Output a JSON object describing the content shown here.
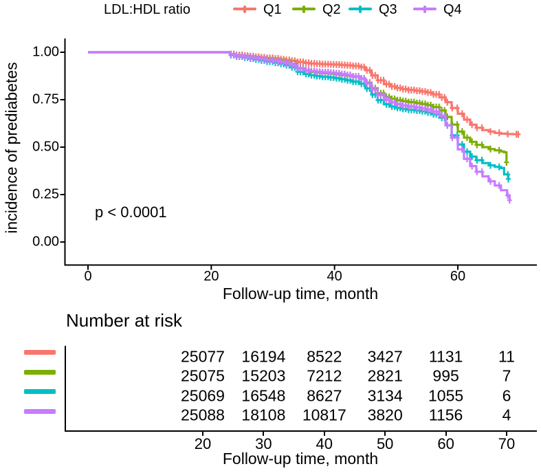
{
  "chart_data": {
    "type": "line",
    "subtype": "kaplan-meier-step-curves-with-censor-marks",
    "title": "",
    "xlabel": "Follow-up time, month",
    "ylabel": "incidence of prediabetes",
    "annotation": "p < 0.0001",
    "xlim": [
      0,
      73
    ],
    "ylim": [
      0,
      1.0
    ],
    "x_ticks": [
      0,
      20,
      40,
      60
    ],
    "y_ticks": [
      {
        "value": 0.0,
        "label": "0.00"
      },
      {
        "value": 0.25,
        "label": "0.25"
      },
      {
        "value": 0.5,
        "label": "0.50"
      },
      {
        "value": 0.75,
        "label": "0.75"
      },
      {
        "value": 1.0,
        "label": "1.00"
      }
    ],
    "grid": false,
    "legend": {
      "title": "LDL:HDL ratio",
      "position": "top"
    },
    "series": [
      {
        "name": "Q1",
        "color": "#F8766D",
        "points": [
          [
            0,
            1
          ],
          [
            22.5,
            1
          ],
          [
            23,
            0.99
          ],
          [
            24,
            0.985
          ],
          [
            25,
            0.982
          ],
          [
            26,
            0.979
          ],
          [
            27,
            0.976
          ],
          [
            28,
            0.973
          ],
          [
            29,
            0.97
          ],
          [
            30,
            0.967
          ],
          [
            31,
            0.963
          ],
          [
            32,
            0.959
          ],
          [
            33,
            0.955
          ],
          [
            34,
            0.949
          ],
          [
            35,
            0.944
          ],
          [
            36,
            0.941
          ],
          [
            37,
            0.939
          ],
          [
            38,
            0.937
          ],
          [
            39,
            0.936
          ],
          [
            40,
            0.935
          ],
          [
            41,
            0.933
          ],
          [
            42,
            0.931
          ],
          [
            43,
            0.928
          ],
          [
            44,
            0.922
          ],
          [
            45,
            0.905
          ],
          [
            46,
            0.878
          ],
          [
            47,
            0.852
          ],
          [
            48,
            0.832
          ],
          [
            49,
            0.82
          ],
          [
            50,
            0.812
          ],
          [
            51,
            0.806
          ],
          [
            52,
            0.801
          ],
          [
            53,
            0.797
          ],
          [
            54,
            0.793
          ],
          [
            55,
            0.788
          ],
          [
            56,
            0.778
          ],
          [
            57,
            0.762
          ],
          [
            58,
            0.737
          ],
          [
            59,
            0.706
          ],
          [
            60,
            0.676
          ],
          [
            61,
            0.645
          ],
          [
            62,
            0.618
          ],
          [
            63,
            0.602
          ],
          [
            64,
            0.59
          ],
          [
            65,
            0.582
          ],
          [
            66,
            0.575
          ],
          [
            67,
            0.571
          ],
          [
            68,
            0.569
          ],
          [
            69,
            0.568
          ],
          [
            69.8,
            0.567
          ]
        ]
      },
      {
        "name": "Q2",
        "color": "#7CAE00",
        "points": [
          [
            0,
            1
          ],
          [
            22.5,
            1
          ],
          [
            23,
            0.988
          ],
          [
            24,
            0.982
          ],
          [
            25,
            0.978
          ],
          [
            26,
            0.974
          ],
          [
            27,
            0.97
          ],
          [
            28,
            0.966
          ],
          [
            29,
            0.962
          ],
          [
            30,
            0.957
          ],
          [
            31,
            0.952
          ],
          [
            32,
            0.947
          ],
          [
            33,
            0.938
          ],
          [
            34,
            0.916
          ],
          [
            35,
            0.904
          ],
          [
            36,
            0.897
          ],
          [
            37,
            0.893
          ],
          [
            38,
            0.89
          ],
          [
            39,
            0.887
          ],
          [
            40,
            0.884
          ],
          [
            41,
            0.88
          ],
          [
            42,
            0.876
          ],
          [
            43,
            0.871
          ],
          [
            44,
            0.862
          ],
          [
            45,
            0.84
          ],
          [
            46,
            0.81
          ],
          [
            47,
            0.784
          ],
          [
            48,
            0.764
          ],
          [
            49,
            0.754
          ],
          [
            50,
            0.747
          ],
          [
            51,
            0.742
          ],
          [
            52,
            0.737
          ],
          [
            53,
            0.732
          ],
          [
            54,
            0.727
          ],
          [
            55,
            0.721
          ],
          [
            56,
            0.711
          ],
          [
            57,
            0.693
          ],
          [
            58,
            0.659
          ],
          [
            59,
            0.619
          ],
          [
            60,
            0.582
          ],
          [
            61,
            0.55
          ],
          [
            62,
            0.528
          ],
          [
            63,
            0.512
          ],
          [
            64,
            0.5
          ],
          [
            65,
            0.49
          ],
          [
            66,
            0.483
          ],
          [
            67,
            0.477
          ],
          [
            67.5,
            0.473
          ],
          [
            67.9,
            0.42
          ]
        ]
      },
      {
        "name": "Q3",
        "color": "#00BFC4",
        "points": [
          [
            0,
            1
          ],
          [
            22.5,
            1
          ],
          [
            23,
            0.985
          ],
          [
            24,
            0.978
          ],
          [
            25,
            0.972
          ],
          [
            26,
            0.967
          ],
          [
            27,
            0.962
          ],
          [
            28,
            0.957
          ],
          [
            29,
            0.951
          ],
          [
            30,
            0.945
          ],
          [
            31,
            0.939
          ],
          [
            32,
            0.932
          ],
          [
            33,
            0.921
          ],
          [
            34,
            0.897
          ],
          [
            35,
            0.886
          ],
          [
            36,
            0.879
          ],
          [
            37,
            0.875
          ],
          [
            38,
            0.871
          ],
          [
            39,
            0.867
          ],
          [
            40,
            0.863
          ],
          [
            41,
            0.858
          ],
          [
            42,
            0.852
          ],
          [
            43,
            0.845
          ],
          [
            44,
            0.834
          ],
          [
            45,
            0.809
          ],
          [
            46,
            0.777
          ],
          [
            47,
            0.748
          ],
          [
            48,
            0.726
          ],
          [
            49,
            0.714
          ],
          [
            50,
            0.707
          ],
          [
            51,
            0.702
          ],
          [
            52,
            0.697
          ],
          [
            53,
            0.693
          ],
          [
            54,
            0.689
          ],
          [
            55,
            0.683
          ],
          [
            56,
            0.673
          ],
          [
            57,
            0.655
          ],
          [
            58,
            0.615
          ],
          [
            59,
            0.562
          ],
          [
            60,
            0.514
          ],
          [
            61,
            0.476
          ],
          [
            62,
            0.45
          ],
          [
            63,
            0.431
          ],
          [
            64,
            0.416
          ],
          [
            65,
            0.404
          ],
          [
            66,
            0.396
          ],
          [
            67,
            0.39
          ],
          [
            67.5,
            0.356
          ],
          [
            68.2,
            0.332
          ]
        ]
      },
      {
        "name": "Q4",
        "color": "#C77CFF",
        "points": [
          [
            0,
            1
          ],
          [
            22.5,
            1
          ],
          [
            23,
            0.987
          ],
          [
            24,
            0.981
          ],
          [
            25,
            0.976
          ],
          [
            26,
            0.972
          ],
          [
            27,
            0.968
          ],
          [
            28,
            0.964
          ],
          [
            29,
            0.959
          ],
          [
            30,
            0.954
          ],
          [
            31,
            0.948
          ],
          [
            32,
            0.942
          ],
          [
            33,
            0.933
          ],
          [
            34,
            0.914
          ],
          [
            35,
            0.906
          ],
          [
            36,
            0.901
          ],
          [
            37,
            0.898
          ],
          [
            38,
            0.895
          ],
          [
            39,
            0.892
          ],
          [
            40,
            0.889
          ],
          [
            41,
            0.885
          ],
          [
            42,
            0.88
          ],
          [
            43,
            0.873
          ],
          [
            44,
            0.86
          ],
          [
            45,
            0.836
          ],
          [
            46,
            0.804
          ],
          [
            47,
            0.774
          ],
          [
            48,
            0.75
          ],
          [
            49,
            0.736
          ],
          [
            50,
            0.726
          ],
          [
            51,
            0.72
          ],
          [
            52,
            0.714
          ],
          [
            53,
            0.709
          ],
          [
            54,
            0.704
          ],
          [
            55,
            0.698
          ],
          [
            56,
            0.687
          ],
          [
            57,
            0.665
          ],
          [
            58,
            0.615
          ],
          [
            59,
            0.55
          ],
          [
            60,
            0.488
          ],
          [
            61,
            0.438
          ],
          [
            62,
            0.4
          ],
          [
            63,
            0.37
          ],
          [
            64,
            0.346
          ],
          [
            65,
            0.32
          ],
          [
            66,
            0.298
          ],
          [
            67,
            0.273
          ],
          [
            68,
            0.246
          ],
          [
            68.4,
            0.22
          ]
        ]
      }
    ],
    "risk_table": {
      "title": "Number at risk",
      "xlabel": "Follow-up time, month",
      "x_ticks": [
        20,
        30,
        40,
        50,
        60,
        70
      ],
      "rows": [
        {
          "name": "Q1",
          "color": "#F8766D",
          "values": [
            "25077",
            "16194",
            "8522",
            "3427",
            "1131",
            "11"
          ]
        },
        {
          "name": "Q2",
          "color": "#7CAE00",
          "values": [
            "25075",
            "15203",
            "7212",
            "2821",
            "995",
            "7"
          ]
        },
        {
          "name": "Q3",
          "color": "#00BFC4",
          "values": [
            "25069",
            "16548",
            "8627",
            "3134",
            "1055",
            "6"
          ]
        },
        {
          "name": "Q4",
          "color": "#C77CFF",
          "values": [
            "25088",
            "18108",
            "10817",
            "3820",
            "1156",
            "4"
          ]
        }
      ]
    }
  }
}
